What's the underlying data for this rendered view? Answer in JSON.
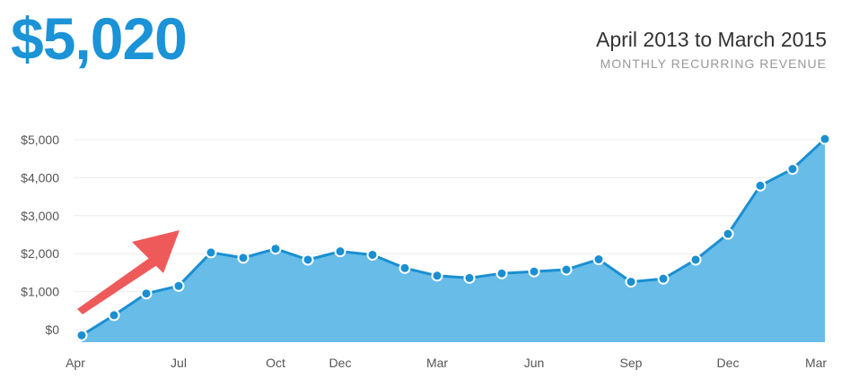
{
  "header": {
    "value": "$5,020",
    "period": "April 2013 to March 2015",
    "metric": "MONTHLY RECURRING REVENUE"
  },
  "colors": {
    "accent": "#1b93d6",
    "area_fill": "#67bce8",
    "line": "#1a8fd1",
    "arrow": "#ee5a5a"
  },
  "chart_data": {
    "type": "area",
    "x": [
      "Apr 2013",
      "May 2013",
      "Jun 2013",
      "Jul 2013",
      "Aug 2013",
      "Sep 2013",
      "Oct 2013",
      "Nov 2013",
      "Dec 2013",
      "Jan 2014",
      "Feb 2014",
      "Mar 2014",
      "Apr 2014",
      "May 2014",
      "Jun 2014",
      "Jul 2014",
      "Aug 2014",
      "Sep 2014",
      "Oct 2014",
      "Nov 2014",
      "Dec 2014",
      "Jan 2015",
      "Feb 2015",
      "Mar 2015"
    ],
    "values": [
      -150,
      380,
      950,
      1150,
      2030,
      1890,
      2130,
      1840,
      2060,
      1970,
      1620,
      1420,
      1360,
      1480,
      1530,
      1580,
      1850,
      1260,
      1340,
      1840,
      2520,
      3790,
      4230,
      5020
    ],
    "x_tick_labels": [
      "Apr",
      "Jul",
      "Oct",
      "Dec",
      "Mar",
      "Jun",
      "Sep",
      "Dec",
      "Mar"
    ],
    "x_tick_indices": [
      0,
      3,
      6,
      8,
      11,
      14,
      17,
      20,
      23
    ],
    "y_ticks": [
      0,
      1000,
      2000,
      3000,
      4000,
      5000
    ],
    "y_tick_labels": [
      "$0",
      "$1,000",
      "$2,000",
      "$3,000",
      "$4,000",
      "$5,000"
    ],
    "ylim": [
      -300,
      5000
    ],
    "grid": true,
    "annotation": "red arrow pointing up-right"
  }
}
